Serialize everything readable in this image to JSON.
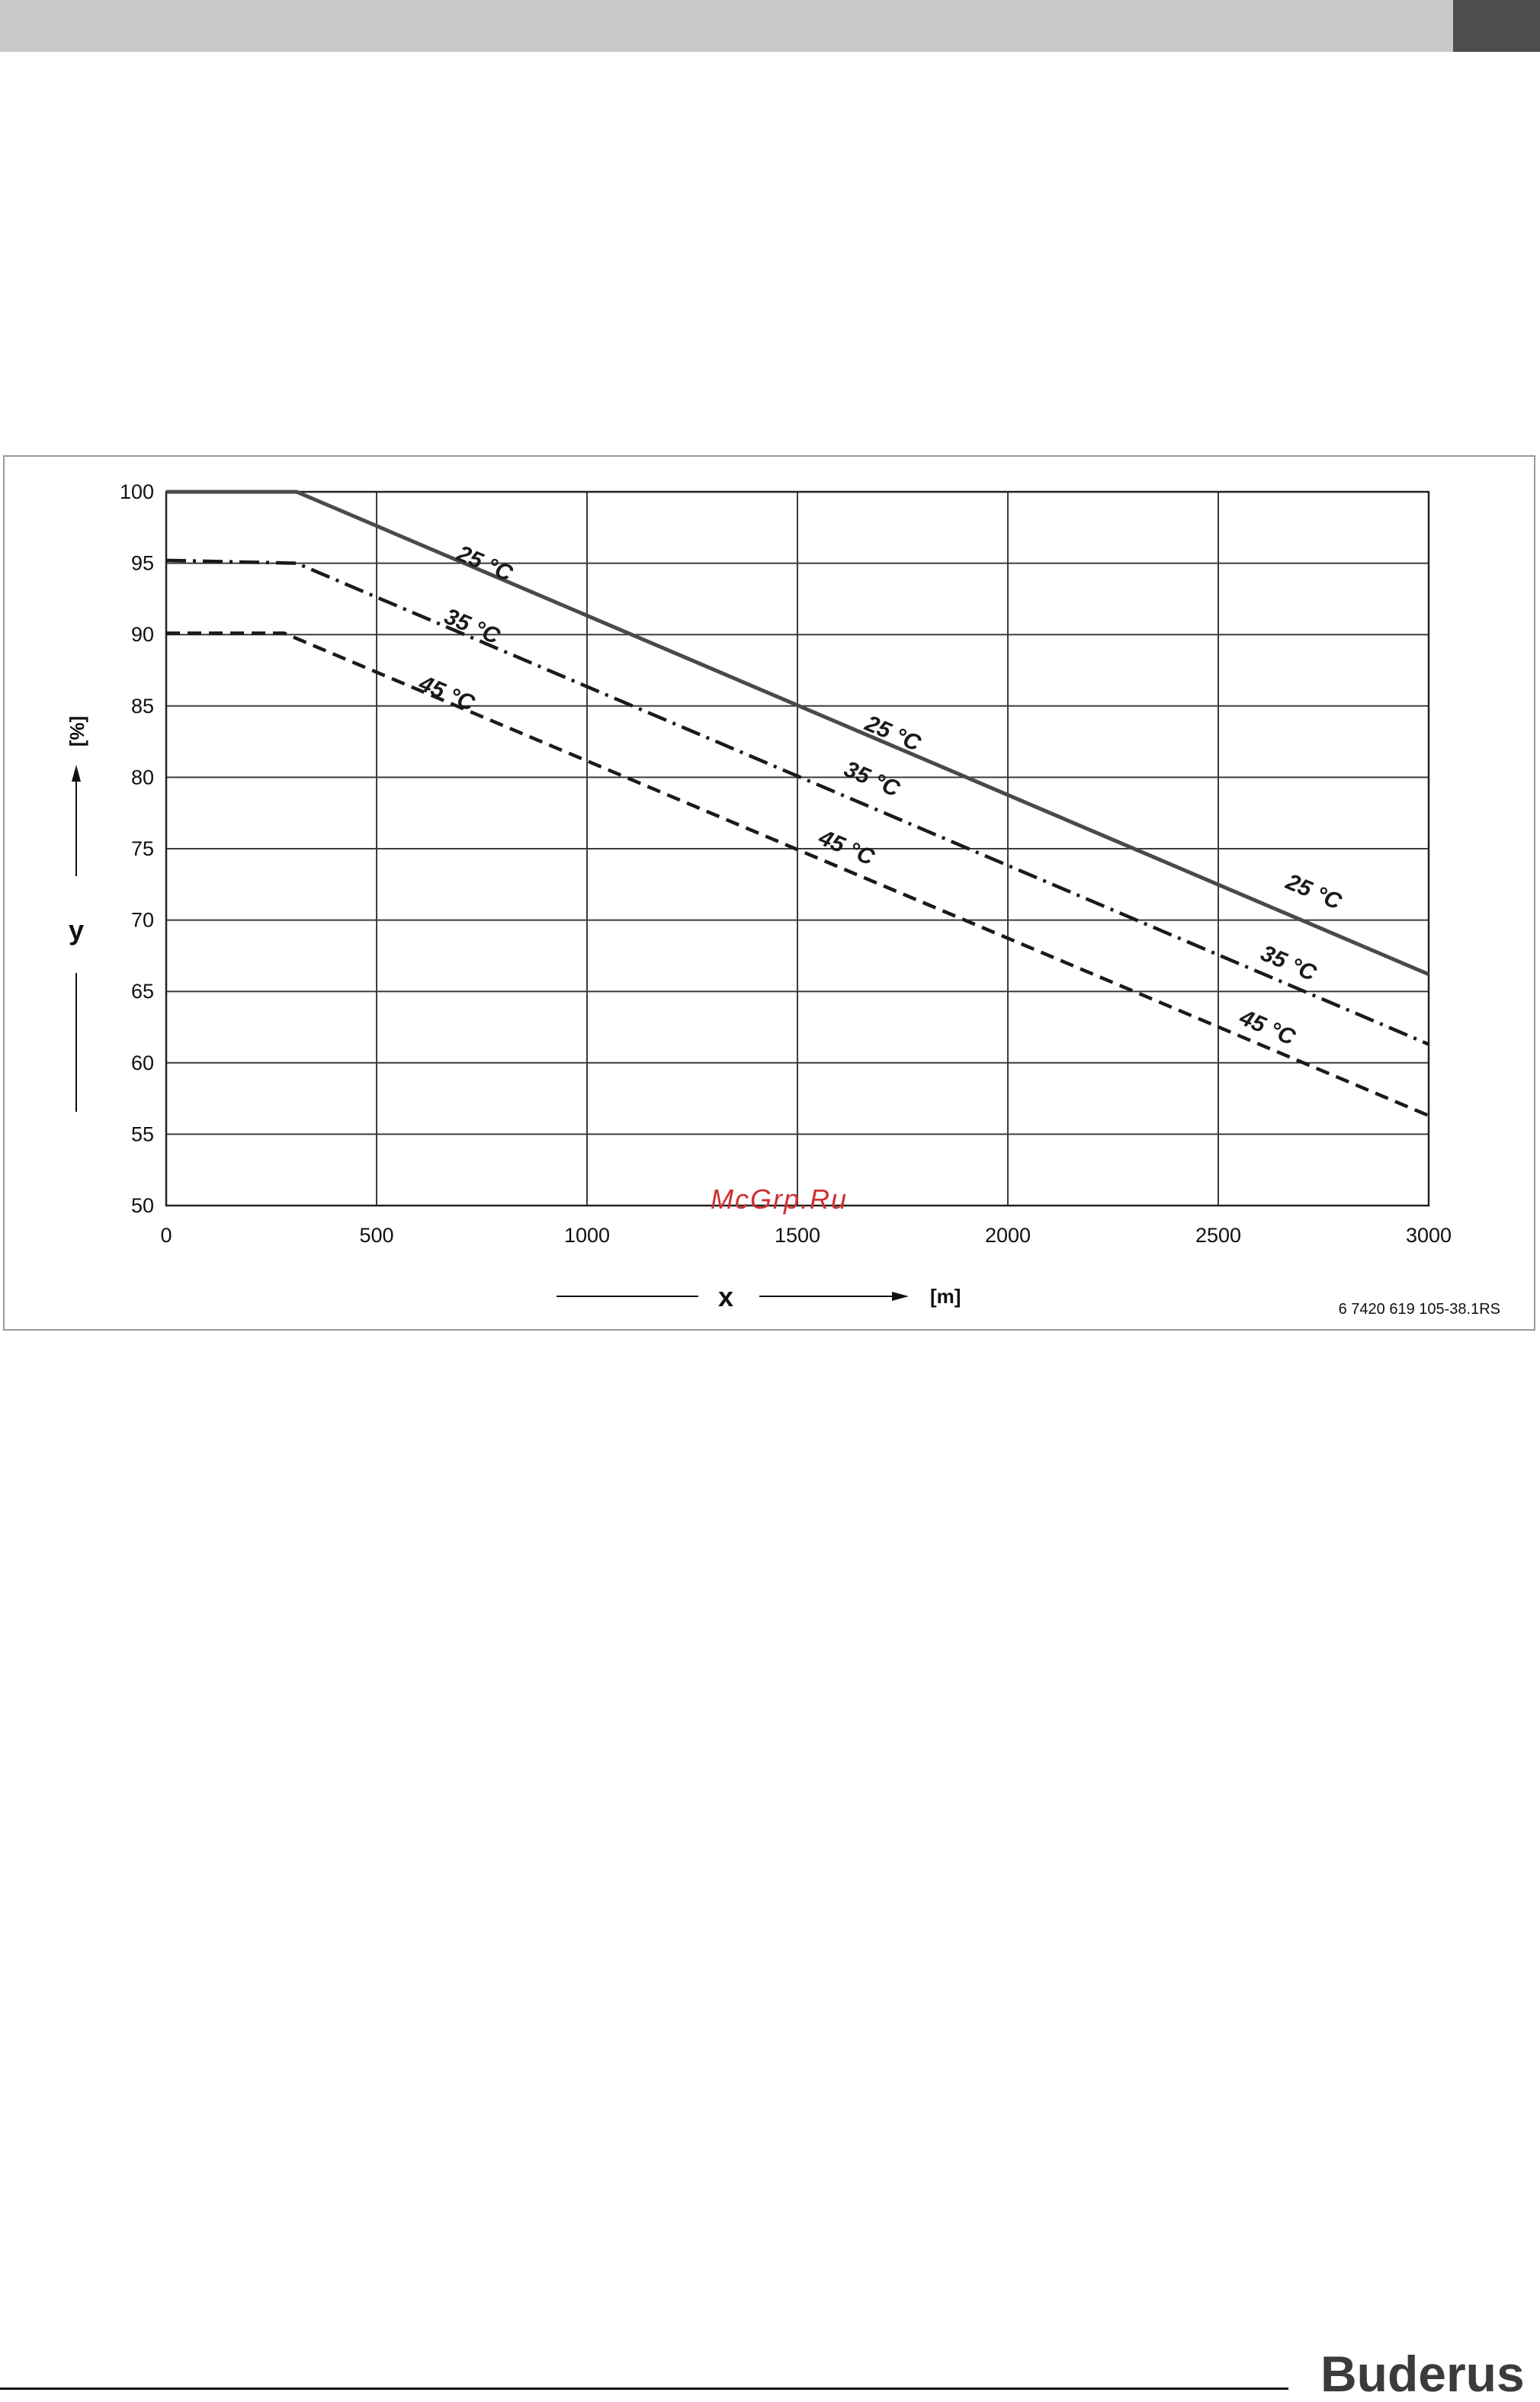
{
  "chart_data": {
    "type": "line",
    "title": "",
    "xlabel": "x",
    "xunit": "[m]",
    "ylabel": "y",
    "yunit": "[%]",
    "xlim": [
      0,
      3000
    ],
    "ylim": [
      50,
      100
    ],
    "x_ticks": [
      0,
      500,
      1000,
      1500,
      2000,
      2500,
      3000
    ],
    "y_ticks": [
      50,
      55,
      60,
      65,
      70,
      75,
      80,
      85,
      90,
      95,
      100
    ],
    "grid": true,
    "series": [
      {
        "name": "25 °C",
        "style": "solid",
        "points": [
          [
            0,
            100
          ],
          [
            310,
            100
          ],
          [
            3000,
            66.2
          ]
        ],
        "labels": [
          [
            750,
            94.5
          ],
          [
            1720,
            82.6
          ],
          [
            2720,
            71.5
          ]
        ]
      },
      {
        "name": "35 °C",
        "style": "dash-dot",
        "points": [
          [
            0,
            95.2
          ],
          [
            310,
            95
          ],
          [
            3000,
            61.3
          ]
        ],
        "labels": [
          [
            720,
            90.1
          ],
          [
            1670,
            79.4
          ],
          [
            2660,
            66.5
          ]
        ]
      },
      {
        "name": "45 °C",
        "style": "dashed",
        "points": [
          [
            0,
            90.1
          ],
          [
            280,
            90.1
          ],
          [
            3000,
            56.3
          ]
        ],
        "labels": [
          [
            660,
            85.4
          ],
          [
            1610,
            74.6
          ],
          [
            2610,
            62
          ]
        ]
      }
    ],
    "figure_code": "6 7420 619 105-38.1RS",
    "watermark": "McGrp.Ru"
  },
  "colors": {
    "line": "#4a4a4a",
    "grid": "#3c3c3c",
    "watermark": "#d03030",
    "text": "#111111"
  },
  "brand": {
    "name": "Buderus"
  }
}
